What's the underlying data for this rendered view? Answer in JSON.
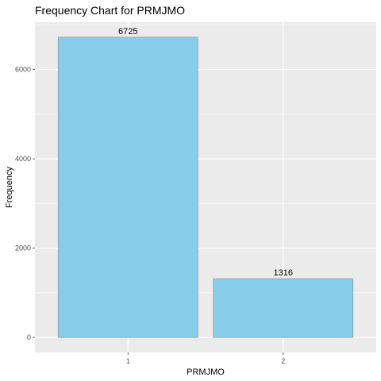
{
  "chart_data": {
    "type": "bar",
    "title": "Frequency Chart for PRMJMO",
    "xlabel": "PRMJMO",
    "ylabel": "Frequency",
    "categories": [
      "1",
      "2"
    ],
    "values": [
      6725,
      1316
    ],
    "data_labels": [
      "6725",
      "1316"
    ],
    "ylim": [
      -336,
      7061
    ],
    "y_ticks": [
      0,
      2000,
      4000,
      6000
    ],
    "y_tick_labels": [
      "0",
      "2000",
      "4000",
      "6000"
    ],
    "grid": true,
    "legend": "none"
  },
  "colors": {
    "bar_fill": "#87ceeb",
    "bar_stroke": "#9a9a9a",
    "panel_background": "#ebebeb",
    "grid_major": "#ffffff",
    "tick_text": "#4d4d4d"
  }
}
